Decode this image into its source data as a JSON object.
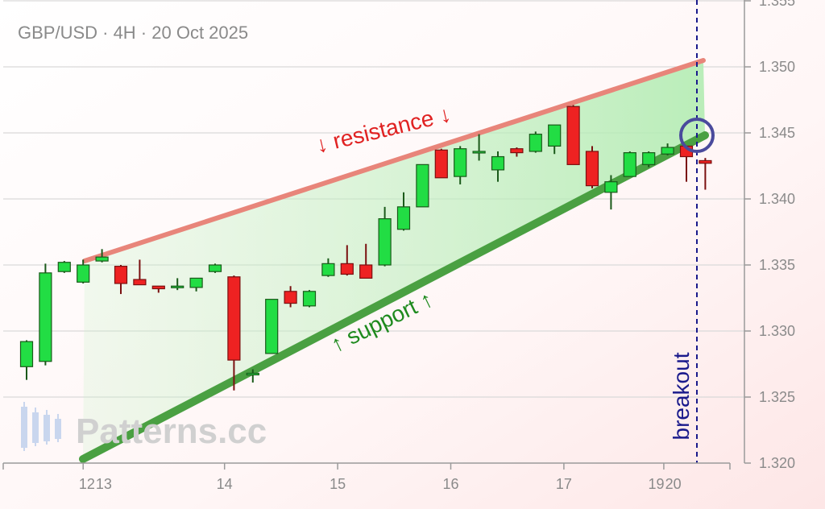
{
  "chart_data": {
    "type": "candlestick",
    "title": "GBP/USD · 4H · 20 Oct 2025",
    "ylim": [
      1.32,
      1.355
    ],
    "yticks": [
      "1.320",
      "1.325",
      "1.330",
      "1.335",
      "1.340",
      "1.345",
      "1.350",
      "1.355"
    ],
    "xticks": [
      "12",
      "13",
      "14",
      "15",
      "16",
      "17",
      "19",
      "20"
    ],
    "grid": true,
    "candles": [
      {
        "o": 1.3273,
        "h": 1.3293,
        "l": 1.3263,
        "c": 1.3292
      },
      {
        "o": 1.3277,
        "h": 1.3351,
        "l": 1.3274,
        "c": 1.3344
      },
      {
        "o": 1.3345,
        "h": 1.3353,
        "l": 1.3344,
        "c": 1.3352
      },
      {
        "o": 1.3337,
        "h": 1.3354,
        "l": 1.3336,
        "c": 1.335
      },
      {
        "o": 1.3353,
        "h": 1.3362,
        "l": 1.3352,
        "c": 1.3356
      },
      {
        "o": 1.3349,
        "h": 1.335,
        "l": 1.3328,
        "c": 1.3336
      },
      {
        "o": 1.3339,
        "h": 1.3354,
        "l": 1.3335,
        "c": 1.3335
      },
      {
        "o": 1.3334,
        "h": 1.3334,
        "l": 1.3329,
        "c": 1.3332
      },
      {
        "o": 1.3334,
        "h": 1.334,
        "l": 1.3331,
        "c": 1.3334
      },
      {
        "o": 1.3333,
        "h": 1.334,
        "l": 1.333,
        "c": 1.334
      },
      {
        "o": 1.3345,
        "h": 1.3351,
        "l": 1.3344,
        "c": 1.335
      },
      {
        "o": 1.3341,
        "h": 1.3342,
        "l": 1.3255,
        "c": 1.3278
      },
      {
        "o": 1.3267,
        "h": 1.3271,
        "l": 1.3261,
        "c": 1.3268
      },
      {
        "o": 1.3283,
        "h": 1.3324,
        "l": 1.3283,
        "c": 1.3324
      },
      {
        "o": 1.333,
        "h": 1.3334,
        "l": 1.3318,
        "c": 1.3321
      },
      {
        "o": 1.3319,
        "h": 1.3331,
        "l": 1.3318,
        "c": 1.333
      },
      {
        "o": 1.3342,
        "h": 1.3355,
        "l": 1.3341,
        "c": 1.3351
      },
      {
        "o": 1.3351,
        "h": 1.3365,
        "l": 1.3342,
        "c": 1.3343
      },
      {
        "o": 1.335,
        "h": 1.3366,
        "l": 1.334,
        "c": 1.334
      },
      {
        "o": 1.335,
        "h": 1.3394,
        "l": 1.3349,
        "c": 1.3385
      },
      {
        "o": 1.3377,
        "h": 1.3405,
        "l": 1.3376,
        "c": 1.3394
      },
      {
        "o": 1.3394,
        "h": 1.3426,
        "l": 1.3394,
        "c": 1.3426
      },
      {
        "o": 1.3437,
        "h": 1.3438,
        "l": 1.3416,
        "c": 1.3416
      },
      {
        "o": 1.3417,
        "h": 1.344,
        "l": 1.3411,
        "c": 1.3438
      },
      {
        "o": 1.3436,
        "h": 1.3449,
        "l": 1.3429,
        "c": 1.3436
      },
      {
        "o": 1.3422,
        "h": 1.3436,
        "l": 1.3413,
        "c": 1.3432
      },
      {
        "o": 1.3438,
        "h": 1.3439,
        "l": 1.3432,
        "c": 1.3435
      },
      {
        "o": 1.3436,
        "h": 1.3451,
        "l": 1.3435,
        "c": 1.3449
      },
      {
        "o": 1.344,
        "h": 1.3456,
        "l": 1.3434,
        "c": 1.3456
      },
      {
        "o": 1.347,
        "h": 1.3471,
        "l": 1.3426,
        "c": 1.3426
      },
      {
        "o": 1.3436,
        "h": 1.344,
        "l": 1.3408,
        "c": 1.341
      },
      {
        "o": 1.3405,
        "h": 1.3418,
        "l": 1.3392,
        "c": 1.3413
      },
      {
        "o": 1.3417,
        "h": 1.3436,
        "l": 1.3417,
        "c": 1.3435
      },
      {
        "o": 1.3426,
        "h": 1.3436,
        "l": 1.3424,
        "c": 1.3435
      },
      {
        "o": 1.3434,
        "h": 1.3442,
        "l": 1.3433,
        "c": 1.3439
      },
      {
        "o": 1.344,
        "h": 1.344,
        "l": 1.3413,
        "c": 1.3432
      },
      {
        "o": 1.3429,
        "h": 1.3431,
        "l": 1.3407,
        "c": 1.3427
      }
    ],
    "resistance_label": "↓ resistance ↓",
    "support_label": "↑ support ↑",
    "breakout_label": "breakout",
    "watermark": "Patterns.cc",
    "colors": {
      "bull": "#22dd44",
      "bear": "#ee2222",
      "resistance": "#e8857a",
      "support": "#4aa042",
      "breakout": "#1a1a8c",
      "circle": "#4a4a9c"
    }
  }
}
